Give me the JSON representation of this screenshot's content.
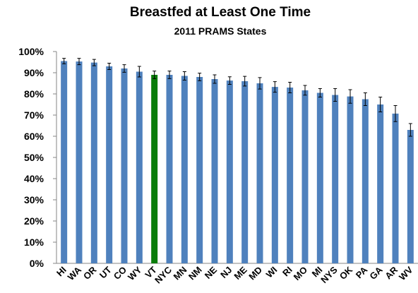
{
  "chart_data": {
    "type": "bar",
    "title": "Breastfed at Least One Time",
    "subtitle": "2011 PRAMS States",
    "categories": [
      "HI",
      "WA",
      "OR",
      "UT",
      "CO",
      "WY",
      "VT",
      "NYC",
      "MN",
      "NM",
      "NE",
      "NJ",
      "ME",
      "MD",
      "WI",
      "RI",
      "MO",
      "MI",
      "NYS",
      "OK",
      "PA",
      "GA",
      "AR",
      "WV"
    ],
    "values": [
      95.5,
      95.3,
      94.8,
      93,
      92,
      90.5,
      89,
      89,
      88.5,
      88,
      87,
      86.3,
      86,
      85,
      83.3,
      83,
      81.7,
      80.5,
      79.5,
      78.8,
      77.5,
      75,
      70.7,
      63
    ],
    "errors": [
      1.3,
      1.5,
      1.5,
      1.5,
      1.8,
      2.5,
      1.8,
      1.8,
      2,
      1.8,
      2,
      1.8,
      2.3,
      2.7,
      2.5,
      2.5,
      2.3,
      2,
      3,
      3.2,
      3,
      3.5,
      3.8,
      3
    ],
    "colors": [
      "#4f81bd",
      "#4f81bd",
      "#4f81bd",
      "#4f81bd",
      "#4f81bd",
      "#4f81bd",
      "#0a7d0a",
      "#4f81bd",
      "#4f81bd",
      "#4f81bd",
      "#4f81bd",
      "#4f81bd",
      "#4f81bd",
      "#4f81bd",
      "#4f81bd",
      "#4f81bd",
      "#4f81bd",
      "#4f81bd",
      "#4f81bd",
      "#4f81bd",
      "#4f81bd",
      "#4f81bd",
      "#4f81bd",
      "#4f81bd"
    ],
    "ylim": [
      0,
      100
    ],
    "yticks": [
      {
        "value": 0,
        "label": "0%"
      },
      {
        "value": 10,
        "label": "10%"
      },
      {
        "value": 20,
        "label": "20%"
      },
      {
        "value": 30,
        "label": "30%"
      },
      {
        "value": 40,
        "label": "40%"
      },
      {
        "value": 50,
        "label": "50%"
      },
      {
        "value": 60,
        "label": "60%"
      },
      {
        "value": 70,
        "label": "70%"
      },
      {
        "value": 80,
        "label": "80%"
      },
      {
        "value": 90,
        "label": "90%"
      },
      {
        "value": 100,
        "label": "100%"
      }
    ],
    "grid": false
  }
}
